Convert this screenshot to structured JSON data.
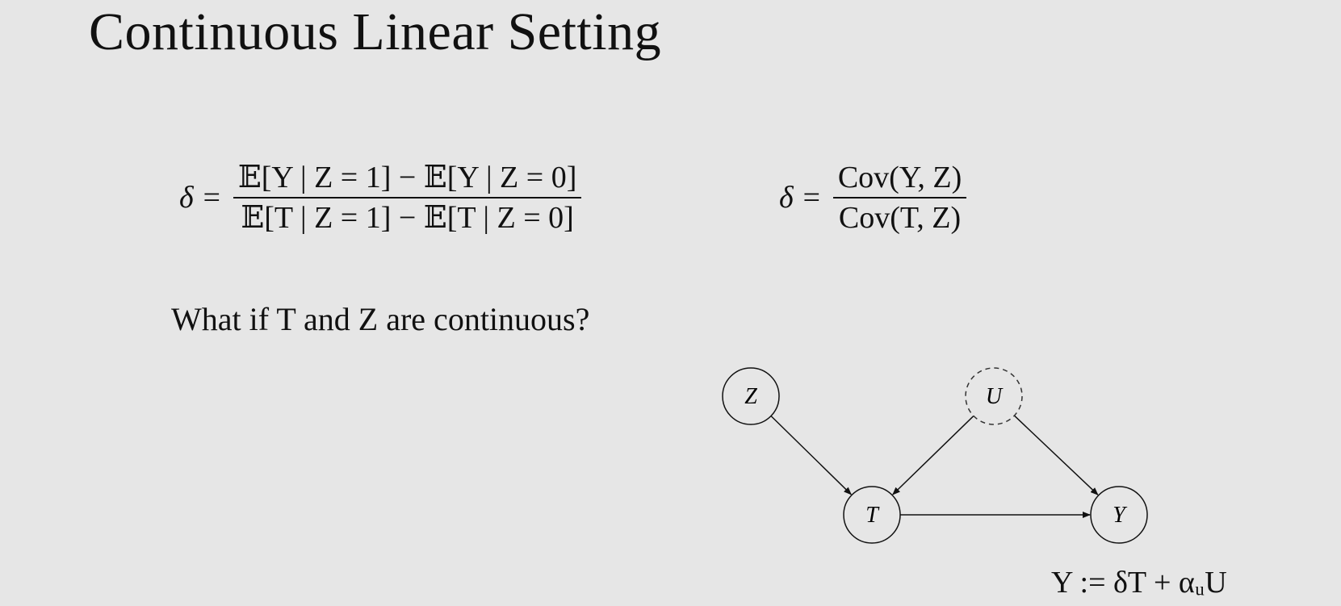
{
  "slide": {
    "title": "Continuous Linear Setting",
    "equation_wald": {
      "lhs": "δ =",
      "numerator": "𝔼[Y | Z = 1] − 𝔼[Y | Z = 0]",
      "denominator": "𝔼[T | Z = 1] − 𝔼[T | Z = 0]"
    },
    "equation_cov": {
      "lhs": "δ =",
      "numerator": "Cov(Y, Z)",
      "denominator": "Cov(T, Z)"
    },
    "question": "What if T and Z are continuous?",
    "dag": {
      "nodes": [
        {
          "id": "Z",
          "label": "Z",
          "observed": true
        },
        {
          "id": "U",
          "label": "U",
          "observed": false
        },
        {
          "id": "T",
          "label": "T",
          "observed": true
        },
        {
          "id": "Y",
          "label": "Y",
          "observed": true
        }
      ],
      "edges": [
        {
          "from": "Z",
          "to": "T"
        },
        {
          "from": "U",
          "to": "T"
        },
        {
          "from": "U",
          "to": "Y"
        },
        {
          "from": "T",
          "to": "Y"
        }
      ]
    },
    "structural_equation": "Y := δT + αᵤU"
  }
}
